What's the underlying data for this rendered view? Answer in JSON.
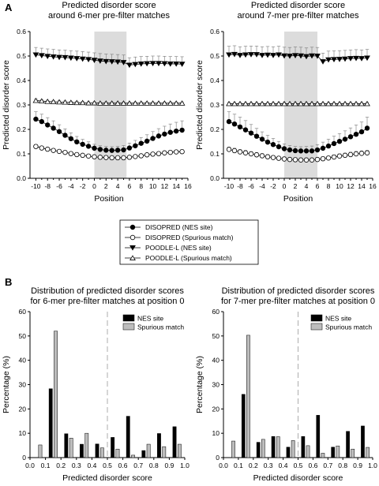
{
  "panels": {
    "a_label": "A",
    "b_label": "B"
  },
  "chart_data": [
    {
      "type": "line",
      "title": "Predicted disorder score\naround 6-mer pre-filter matches",
      "xlabel": "Position",
      "ylabel": "Predicted disorder score",
      "x": [
        -10,
        -9,
        -8,
        -7,
        -6,
        -5,
        -4,
        -3,
        -2,
        -1,
        0,
        1,
        2,
        3,
        4,
        5,
        6,
        7,
        8,
        9,
        10,
        11,
        12,
        13,
        14,
        15
      ],
      "xticks": [
        "-10",
        "-8",
        "-6",
        "-4",
        "-2",
        "0",
        "2",
        "4",
        "6",
        "8",
        "10",
        "12",
        "14",
        "16"
      ],
      "yticks": [
        "0.0",
        "0.1",
        "0.2",
        "0.3",
        "0.4",
        "0.5",
        "0.6"
      ],
      "xlim": [
        -11,
        16
      ],
      "ylim": [
        0,
        0.6
      ],
      "shaded_region": [
        0,
        5.5
      ],
      "series": [
        {
          "name": "DISOPRED (NES site)",
          "marker": "circle-filled",
          "values": [
            0.242,
            0.232,
            0.218,
            0.205,
            0.191,
            0.176,
            0.162,
            0.149,
            0.139,
            0.131,
            0.123,
            0.118,
            0.115,
            0.114,
            0.115,
            0.116,
            0.124,
            0.133,
            0.143,
            0.152,
            0.163,
            0.173,
            0.181,
            0.188,
            0.193,
            0.197
          ],
          "errors": [
            0.03,
            0.03,
            0.03,
            0.03,
            0.028,
            0.026,
            0.024,
            0.022,
            0.02,
            0.018,
            0.016,
            0.015,
            0.015,
            0.015,
            0.016,
            0.018,
            0.02,
            0.022,
            0.024,
            0.026,
            0.028,
            0.03,
            0.032,
            0.034,
            0.036,
            0.038
          ]
        },
        {
          "name": "DISOPRED (Spurious match)",
          "marker": "circle-open",
          "values": [
            0.13,
            0.124,
            0.119,
            0.114,
            0.11,
            0.106,
            0.101,
            0.097,
            0.094,
            0.091,
            0.088,
            0.086,
            0.085,
            0.084,
            0.084,
            0.084,
            0.086,
            0.089,
            0.092,
            0.096,
            0.099,
            0.101,
            0.104,
            0.106,
            0.108,
            0.109
          ],
          "errors": [
            0.008,
            0.007,
            0.007,
            0.007,
            0.006,
            0.006,
            0.006,
            0.006,
            0.006,
            0.006,
            0.005,
            0.005,
            0.005,
            0.005,
            0.005,
            0.005,
            0.005,
            0.005,
            0.006,
            0.006,
            0.006,
            0.006,
            0.007,
            0.007,
            0.007,
            0.008
          ]
        },
        {
          "name": "POODLE-L (NES site)",
          "marker": "triangle-down-filled",
          "values": [
            0.505,
            0.502,
            0.499,
            0.497,
            0.495,
            0.494,
            0.492,
            0.49,
            0.488,
            0.486,
            0.483,
            0.48,
            0.478,
            0.477,
            0.476,
            0.474,
            0.463,
            0.466,
            0.468,
            0.469,
            0.47,
            0.47,
            0.469,
            0.468,
            0.468,
            0.467
          ],
          "errors": [
            0.03,
            0.03,
            0.03,
            0.03,
            0.03,
            0.03,
            0.03,
            0.03,
            0.03,
            0.03,
            0.03,
            0.03,
            0.03,
            0.03,
            0.03,
            0.03,
            0.03,
            0.03,
            0.03,
            0.03,
            0.03,
            0.03,
            0.03,
            0.03,
            0.03,
            0.03
          ]
        },
        {
          "name": "POODLE-L (Spurious match)",
          "marker": "triangle-up-open",
          "values": [
            0.318,
            0.316,
            0.314,
            0.313,
            0.312,
            0.311,
            0.31,
            0.309,
            0.309,
            0.308,
            0.308,
            0.307,
            0.307,
            0.307,
            0.307,
            0.307,
            0.307,
            0.307,
            0.307,
            0.307,
            0.307,
            0.307,
            0.307,
            0.307,
            0.307,
            0.307
          ],
          "errors": [
            0.006,
            0.005,
            0.005,
            0.005,
            0.005,
            0.005,
            0.005,
            0.005,
            0.005,
            0.005,
            0.005,
            0.005,
            0.005,
            0.005,
            0.005,
            0.005,
            0.005,
            0.005,
            0.005,
            0.005,
            0.005,
            0.005,
            0.005,
            0.005,
            0.005,
            0.005
          ]
        }
      ],
      "grid": false
    },
    {
      "type": "line",
      "title": "Predicted disorder score\naround 7-mer pre-filter matches",
      "xlabel": "Position",
      "ylabel": "Predicted disorder score",
      "x": [
        -10,
        -9,
        -8,
        -7,
        -6,
        -5,
        -4,
        -3,
        -2,
        -1,
        0,
        1,
        2,
        3,
        4,
        5,
        6,
        7,
        8,
        9,
        10,
        11,
        12,
        13,
        14,
        15
      ],
      "xticks": [
        "-10",
        "-8",
        "-6",
        "-4",
        "-2",
        "0",
        "2",
        "4",
        "6",
        "8",
        "10",
        "12",
        "14",
        "16"
      ],
      "yticks": [
        "0.0",
        "0.1",
        "0.2",
        "0.3",
        "0.4",
        "0.5",
        "0.6"
      ],
      "xlim": [
        -11,
        16
      ],
      "ylim": [
        0,
        0.6
      ],
      "shaded_region": [
        0,
        6
      ],
      "series": [
        {
          "name": "DISOPRED (NES site)",
          "marker": "circle-filled",
          "values": [
            0.232,
            0.222,
            0.21,
            0.198,
            0.185,
            0.172,
            0.16,
            0.148,
            0.138,
            0.129,
            0.121,
            0.116,
            0.113,
            0.112,
            0.112,
            0.112,
            0.116,
            0.123,
            0.132,
            0.142,
            0.151,
            0.16,
            0.17,
            0.18,
            0.19,
            0.205
          ],
          "errors": [
            0.04,
            0.04,
            0.04,
            0.038,
            0.035,
            0.032,
            0.03,
            0.028,
            0.025,
            0.022,
            0.02,
            0.018,
            0.017,
            0.017,
            0.018,
            0.02,
            0.022,
            0.025,
            0.028,
            0.03,
            0.032,
            0.034,
            0.036,
            0.038,
            0.04,
            0.045
          ]
        },
        {
          "name": "DISOPRED (Spurious match)",
          "marker": "circle-open",
          "values": [
            0.118,
            0.113,
            0.108,
            0.104,
            0.1,
            0.096,
            0.092,
            0.088,
            0.085,
            0.082,
            0.079,
            0.077,
            0.076,
            0.075,
            0.075,
            0.075,
            0.077,
            0.08,
            0.083,
            0.087,
            0.091,
            0.094,
            0.097,
            0.1,
            0.102,
            0.104
          ],
          "errors": [
            0.01,
            0.01,
            0.01,
            0.01,
            0.009,
            0.009,
            0.009,
            0.009,
            0.008,
            0.008,
            0.008,
            0.008,
            0.008,
            0.008,
            0.008,
            0.008,
            0.008,
            0.008,
            0.008,
            0.009,
            0.009,
            0.009,
            0.01,
            0.01,
            0.01,
            0.01
          ]
        },
        {
          "name": "POODLE-L (NES site)",
          "marker": "triangle-down-filled",
          "values": [
            0.505,
            0.507,
            0.503,
            0.505,
            0.506,
            0.506,
            0.503,
            0.504,
            0.503,
            0.505,
            0.501,
            0.5,
            0.502,
            0.501,
            0.498,
            0.501,
            0.5,
            0.477,
            0.485,
            0.486,
            0.487,
            0.488,
            0.49,
            0.491,
            0.49,
            0.492
          ],
          "errors": [
            0.035,
            0.035,
            0.035,
            0.035,
            0.035,
            0.035,
            0.035,
            0.035,
            0.035,
            0.035,
            0.035,
            0.035,
            0.035,
            0.035,
            0.035,
            0.035,
            0.035,
            0.035,
            0.035,
            0.035,
            0.035,
            0.035,
            0.035,
            0.035,
            0.035,
            0.035
          ]
        },
        {
          "name": "POODLE-L (Spurious match)",
          "marker": "triangle-up-open",
          "values": [
            0.305,
            0.305,
            0.305,
            0.305,
            0.305,
            0.305,
            0.305,
            0.305,
            0.305,
            0.305,
            0.305,
            0.305,
            0.305,
            0.305,
            0.305,
            0.305,
            0.305,
            0.305,
            0.305,
            0.305,
            0.305,
            0.305,
            0.305,
            0.305,
            0.305,
            0.305
          ],
          "errors": [
            0.005,
            0.005,
            0.005,
            0.005,
            0.005,
            0.005,
            0.005,
            0.005,
            0.005,
            0.005,
            0.005,
            0.005,
            0.005,
            0.005,
            0.005,
            0.005,
            0.005,
            0.005,
            0.005,
            0.005,
            0.005,
            0.005,
            0.005,
            0.005,
            0.005,
            0.005
          ]
        }
      ],
      "grid": false
    },
    {
      "type": "bar",
      "title": "Distribution of predicted disorder scores\nfor 6-mer pre-filter matches at position 0",
      "xlabel": "Predicted disorder score",
      "ylabel": "Percentage (%)",
      "categories": [
        0.05,
        0.15,
        0.25,
        0.35,
        0.45,
        0.55,
        0.65,
        0.75,
        0.85,
        0.95
      ],
      "xticks": [
        "0.0",
        "0.1",
        "0.2",
        "0.3",
        "0.4",
        "0.5",
        "0.6",
        "0.7",
        "0.8",
        "0.9",
        "1.0"
      ],
      "yticks": [
        "0",
        "10",
        "20",
        "30",
        "40",
        "50",
        "60"
      ],
      "xlim": [
        0,
        1.0
      ],
      "ylim": [
        0,
        60
      ],
      "threshold": 0.5,
      "legend_position": "top-right",
      "series": [
        {
          "name": "NES site",
          "color": "#000000",
          "values": [
            0,
            28.3,
            9.8,
            5.5,
            5.6,
            8.3,
            17.0,
            2.9,
            9.9,
            12.7
          ]
        },
        {
          "name": "Spurious match",
          "color": "#bdbdbd",
          "values": [
            5.2,
            52.0,
            8.0,
            10.0,
            4.0,
            3.5,
            1.0,
            5.5,
            4.5,
            5.5
          ]
        }
      ],
      "grid": false
    },
    {
      "type": "bar",
      "title": "Distribution of predicted disorder scores\nfor 7-mer pre-filter matches at position 0",
      "xlabel": "Predicted disorder score",
      "ylabel": "Percentage (%)",
      "categories": [
        0.05,
        0.15,
        0.25,
        0.35,
        0.45,
        0.55,
        0.65,
        0.75,
        0.85,
        0.95
      ],
      "xticks": [
        "0.0",
        "0.1",
        "0.2",
        "0.3",
        "0.4",
        "0.5",
        "0.6",
        "0.7",
        "0.8",
        "0.9",
        "1.0"
      ],
      "yticks": [
        "0",
        "10",
        "20",
        "30",
        "40",
        "50",
        "60"
      ],
      "xlim": [
        0,
        1.0
      ],
      "ylim": [
        0,
        60
      ],
      "threshold": 0.5,
      "legend_position": "top-right",
      "series": [
        {
          "name": "NES site",
          "color": "#000000",
          "values": [
            0,
            26.0,
            6.3,
            8.7,
            4.3,
            8.7,
            17.4,
            4.3,
            10.8,
            13.0
          ]
        },
        {
          "name": "Spurious match",
          "color": "#bdbdbd",
          "values": [
            6.8,
            50.3,
            7.5,
            8.6,
            7.0,
            4.9,
            1.8,
            4.8,
            3.5,
            4.2
          ]
        }
      ],
      "grid": false
    }
  ]
}
